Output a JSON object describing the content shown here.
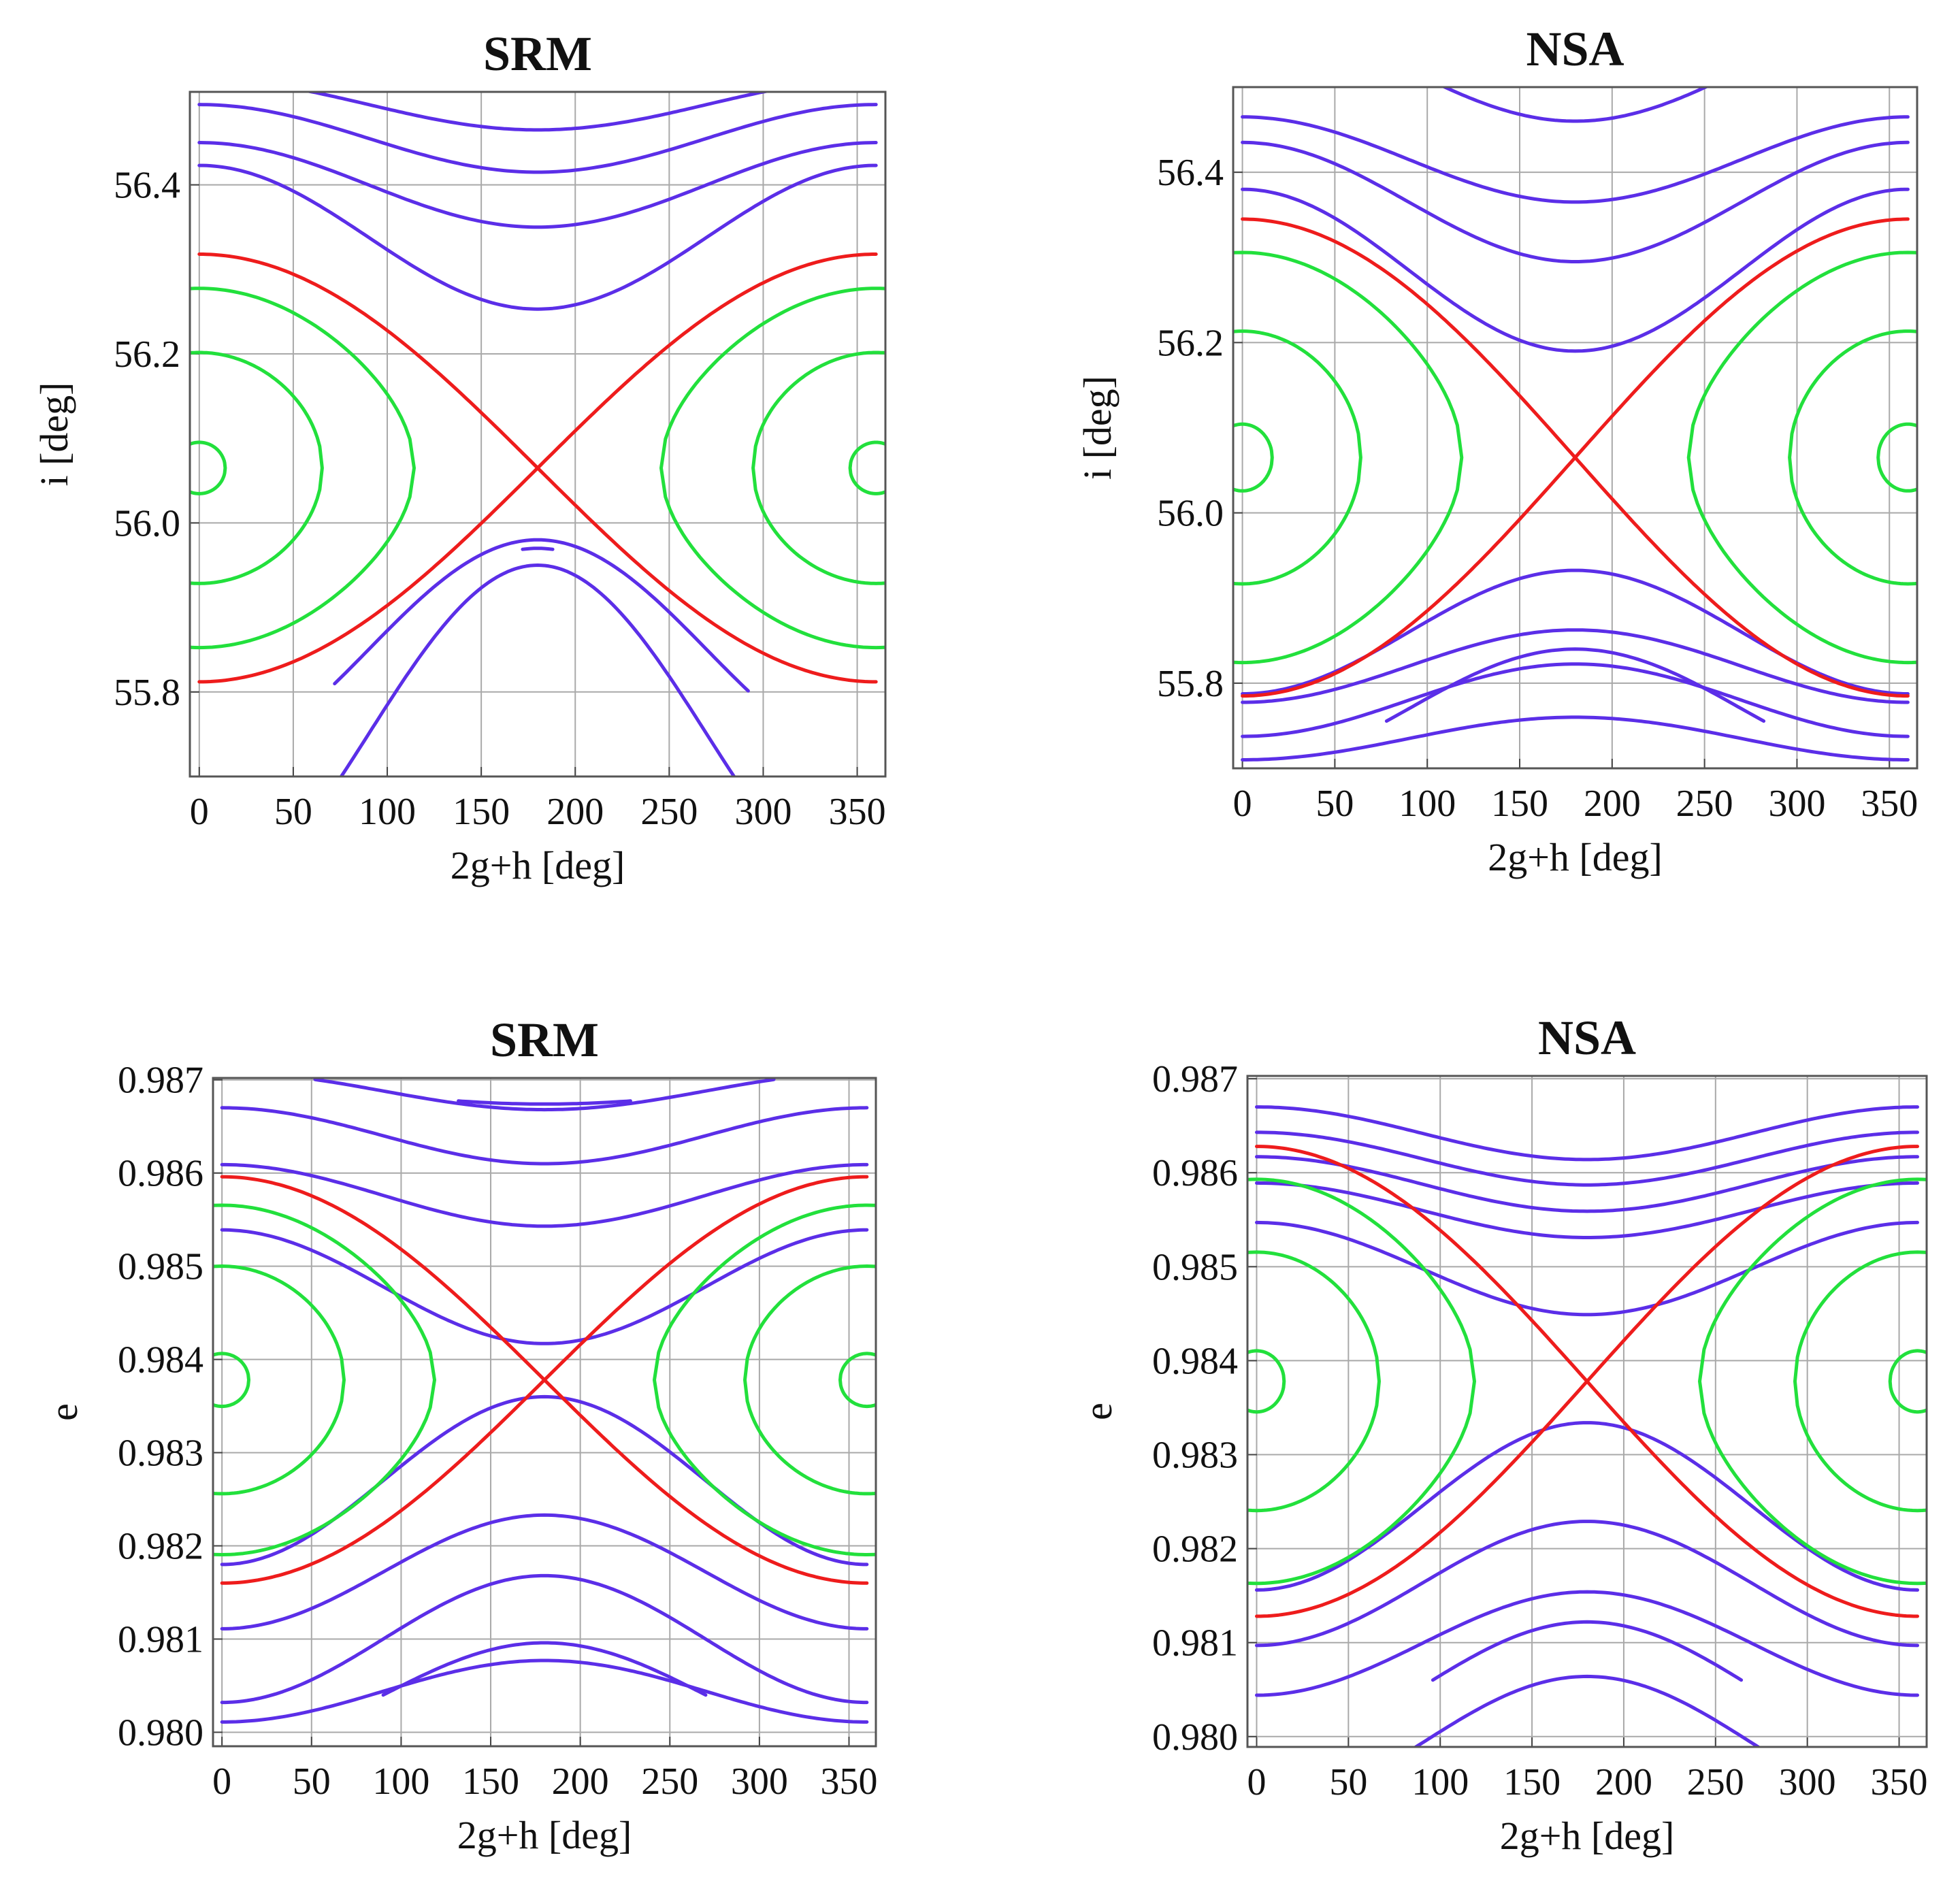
{
  "figure": {
    "description_hidden": false
  },
  "colors": {
    "circulating": "#5b2ee8",
    "separatrix": "#ee1c1c",
    "librating": "#22e03c"
  },
  "chart_data": [
    {
      "type": "line",
      "title": "SRM",
      "xlabel": "2g+h [deg]",
      "ylabel": "i [deg]",
      "xlim": [
        -5,
        365
      ],
      "ylim": [
        55.7,
        56.51
      ],
      "xticks": [
        "0",
        "50",
        "100",
        "150",
        "200",
        "250",
        "300",
        "350"
      ],
      "yticks": [
        "55.8",
        "56.0",
        "56.2",
        "56.4"
      ],
      "ytick_values": [
        55.8,
        56.0,
        56.2,
        56.4
      ],
      "grid": true,
      "center_value": 56.065,
      "series": [
        {
          "name": "circulating",
          "kind": "circ",
          "offset": 0.43,
          "amp": 0.03
        },
        {
          "name": "circulating",
          "kind": "circ",
          "offset": 0.39,
          "amp": 0.04
        },
        {
          "name": "circulating",
          "kind": "circ",
          "offset": 0.335,
          "amp": 0.05
        },
        {
          "name": "circulating",
          "kind": "circ",
          "offset": 0.273,
          "amp": 0.085
        },
        {
          "name": "circulating",
          "kind": "circ",
          "offset": -0.315,
          "amp": -0.2
        },
        {
          "name": "circulating",
          "kind": "circ",
          "offset": -0.215,
          "amp": -0.13,
          "x_range": [
            72,
            292
          ]
        },
        {
          "name": "circulating",
          "kind": "circ",
          "offset": -0.225,
          "amp": -0.13,
          "x_range": [
            172,
            188
          ]
        },
        {
          "name": "separatrix",
          "kind": "sep",
          "amp": 0.253
        },
        {
          "name": "librating",
          "kind": "lib",
          "level": 0.84
        },
        {
          "name": "librating",
          "kind": "lib",
          "level": 0.54
        },
        {
          "name": "librating",
          "kind": "lib",
          "level": 0.12
        }
      ]
    },
    {
      "type": "line",
      "title": "NSA",
      "xlabel": "2g+h [deg]",
      "ylabel": "i [deg]",
      "xlim": [
        -5,
        365
      ],
      "ylim": [
        55.7,
        56.5
      ],
      "xticks": [
        "0",
        "50",
        "100",
        "150",
        "200",
        "250",
        "300",
        "350"
      ],
      "yticks": [
        "55.8",
        "56.0",
        "56.2",
        "56.4"
      ],
      "ytick_values": [
        55.8,
        56.0,
        56.2,
        56.4
      ],
      "grid": true,
      "center_value": 56.065,
      "series": [
        {
          "name": "circulating",
          "kind": "circ",
          "offset": 0.455,
          "amp": 0.06,
          "x_range": [
            57,
            303
          ]
        },
        {
          "name": "circulating",
          "kind": "circ",
          "offset": 0.35,
          "amp": 0.05
        },
        {
          "name": "circulating",
          "kind": "circ",
          "offset": 0.3,
          "amp": 0.07
        },
        {
          "name": "circulating",
          "kind": "circ",
          "offset": 0.22,
          "amp": 0.095
        },
        {
          "name": "circulating",
          "kind": "circ",
          "offset": -0.205,
          "amp": -0.0725
        },
        {
          "name": "circulating",
          "kind": "circ",
          "offset": -0.245,
          "amp": -0.0425
        },
        {
          "name": "circulating",
          "kind": "circ",
          "offset": -0.285,
          "amp": -0.0425
        },
        {
          "name": "circulating",
          "kind": "circ",
          "offset": -0.33,
          "amp": -0.025
        },
        {
          "name": "circulating",
          "kind": "circ",
          "offset": -0.295,
          "amp": -0.07,
          "x_range": [
            78,
            282
          ]
        },
        {
          "name": "separatrix",
          "kind": "sep",
          "amp": 0.28
        },
        {
          "name": "librating",
          "kind": "lib",
          "level": 0.86
        },
        {
          "name": "librating",
          "kind": "lib",
          "level": 0.53
        },
        {
          "name": "librating",
          "kind": "lib",
          "level": 0.14
        }
      ]
    },
    {
      "type": "line",
      "title": "SRM",
      "xlabel": "2g+h [deg]",
      "ylabel": "e",
      "xlim": [
        -5,
        365
      ],
      "ylim": [
        0.97985,
        0.98702
      ],
      "xticks": [
        "0",
        "50",
        "100",
        "150",
        "200",
        "250",
        "300",
        "350"
      ],
      "yticks": [
        "0.980",
        "0.981",
        "0.982",
        "0.983",
        "0.984",
        "0.985",
        "0.986",
        "0.987"
      ],
      "ytick_values": [
        0.98,
        0.981,
        0.982,
        0.983,
        0.984,
        0.985,
        0.986,
        0.987
      ],
      "grid": true,
      "center_value": 0.98378,
      "series": [
        {
          "name": "circulating",
          "kind": "circ",
          "offset": 0.0031,
          "amp": 0.0002,
          "x_range": [
            52,
            308
          ]
        },
        {
          "name": "circulating",
          "kind": "circ",
          "offset": 0.00306,
          "amp": 0.0001,
          "x_range": [
            132,
            228
          ]
        },
        {
          "name": "circulating",
          "kind": "circ",
          "offset": 0.00262,
          "amp": 0.0003
        },
        {
          "name": "circulating",
          "kind": "circ",
          "offset": 0.00198,
          "amp": 0.00033
        },
        {
          "name": "circulating",
          "kind": "circ",
          "offset": 0.001,
          "amp": 0.00061
        },
        {
          "name": "circulating",
          "kind": "circ",
          "offset": -0.00108,
          "amp": -0.0009
        },
        {
          "name": "circulating",
          "kind": "circ",
          "offset": -0.00206,
          "amp": -0.00061
        },
        {
          "name": "circulating",
          "kind": "circ",
          "offset": -0.00278,
          "amp": -0.00068
        },
        {
          "name": "circulating",
          "kind": "circ",
          "offset": -0.00334,
          "amp": -0.00033
        },
        {
          "name": "circulating",
          "kind": "circ",
          "offset": -0.00338,
          "amp": -0.00056,
          "x_range": [
            90,
            270
          ]
        },
        {
          "name": "separatrix",
          "kind": "sep",
          "amp": 0.00218
        },
        {
          "name": "librating",
          "kind": "lib",
          "level": 0.86
        },
        {
          "name": "librating",
          "kind": "lib",
          "level": 0.56
        },
        {
          "name": "librating",
          "kind": "lib",
          "level": 0.13
        }
      ]
    },
    {
      "type": "line",
      "title": "NSA",
      "xlabel": "2g+h [deg]",
      "ylabel": "e",
      "xlim": [
        -5,
        365
      ],
      "ylim": [
        0.97989,
        0.98703
      ],
      "xticks": [
        "0",
        "50",
        "100",
        "150",
        "200",
        "250",
        "300",
        "350"
      ],
      "yticks": [
        "0.980",
        "0.981",
        "0.982",
        "0.983",
        "0.984",
        "0.985",
        "0.986",
        "0.987"
      ],
      "ytick_values": [
        0.98,
        0.981,
        0.982,
        0.983,
        0.984,
        0.985,
        0.986,
        0.987
      ],
      "grid": true,
      "center_value": 0.98378,
      "series": [
        {
          "name": "circulating",
          "kind": "circ",
          "offset": 0.00264,
          "amp": 0.00028
        },
        {
          "name": "circulating",
          "kind": "circ",
          "offset": 0.00237,
          "amp": 0.00028
        },
        {
          "name": "circulating",
          "kind": "circ",
          "offset": 0.0021,
          "amp": 0.00029
        },
        {
          "name": "circulating",
          "kind": "circ",
          "offset": 0.00182,
          "amp": 0.00029
        },
        {
          "name": "circulating",
          "kind": "circ",
          "offset": 0.0012,
          "amp": 0.00049
        },
        {
          "name": "circulating",
          "kind": "circ",
          "offset": -0.00133,
          "amp": -0.00089
        },
        {
          "name": "circulating",
          "kind": "circ",
          "offset": -0.00215,
          "amp": -0.00066
        },
        {
          "name": "circulating",
          "kind": "circ",
          "offset": -0.00279,
          "amp": -0.00055
        },
        {
          "name": "circulating",
          "kind": "circ",
          "offset": -0.00385,
          "amp": -0.00071,
          "x_range": [
            32,
            328
          ]
        },
        {
          "name": "circulating",
          "kind": "circ",
          "offset": -0.00325,
          "amp": -0.00069,
          "x_range": [
            96,
            264
          ]
        },
        {
          "name": "separatrix",
          "kind": "sep",
          "amp": 0.0025
        },
        {
          "name": "librating",
          "kind": "lib",
          "level": 0.86
        },
        {
          "name": "librating",
          "kind": "lib",
          "level": 0.55
        },
        {
          "name": "librating",
          "kind": "lib",
          "level": 0.13
        }
      ]
    }
  ]
}
